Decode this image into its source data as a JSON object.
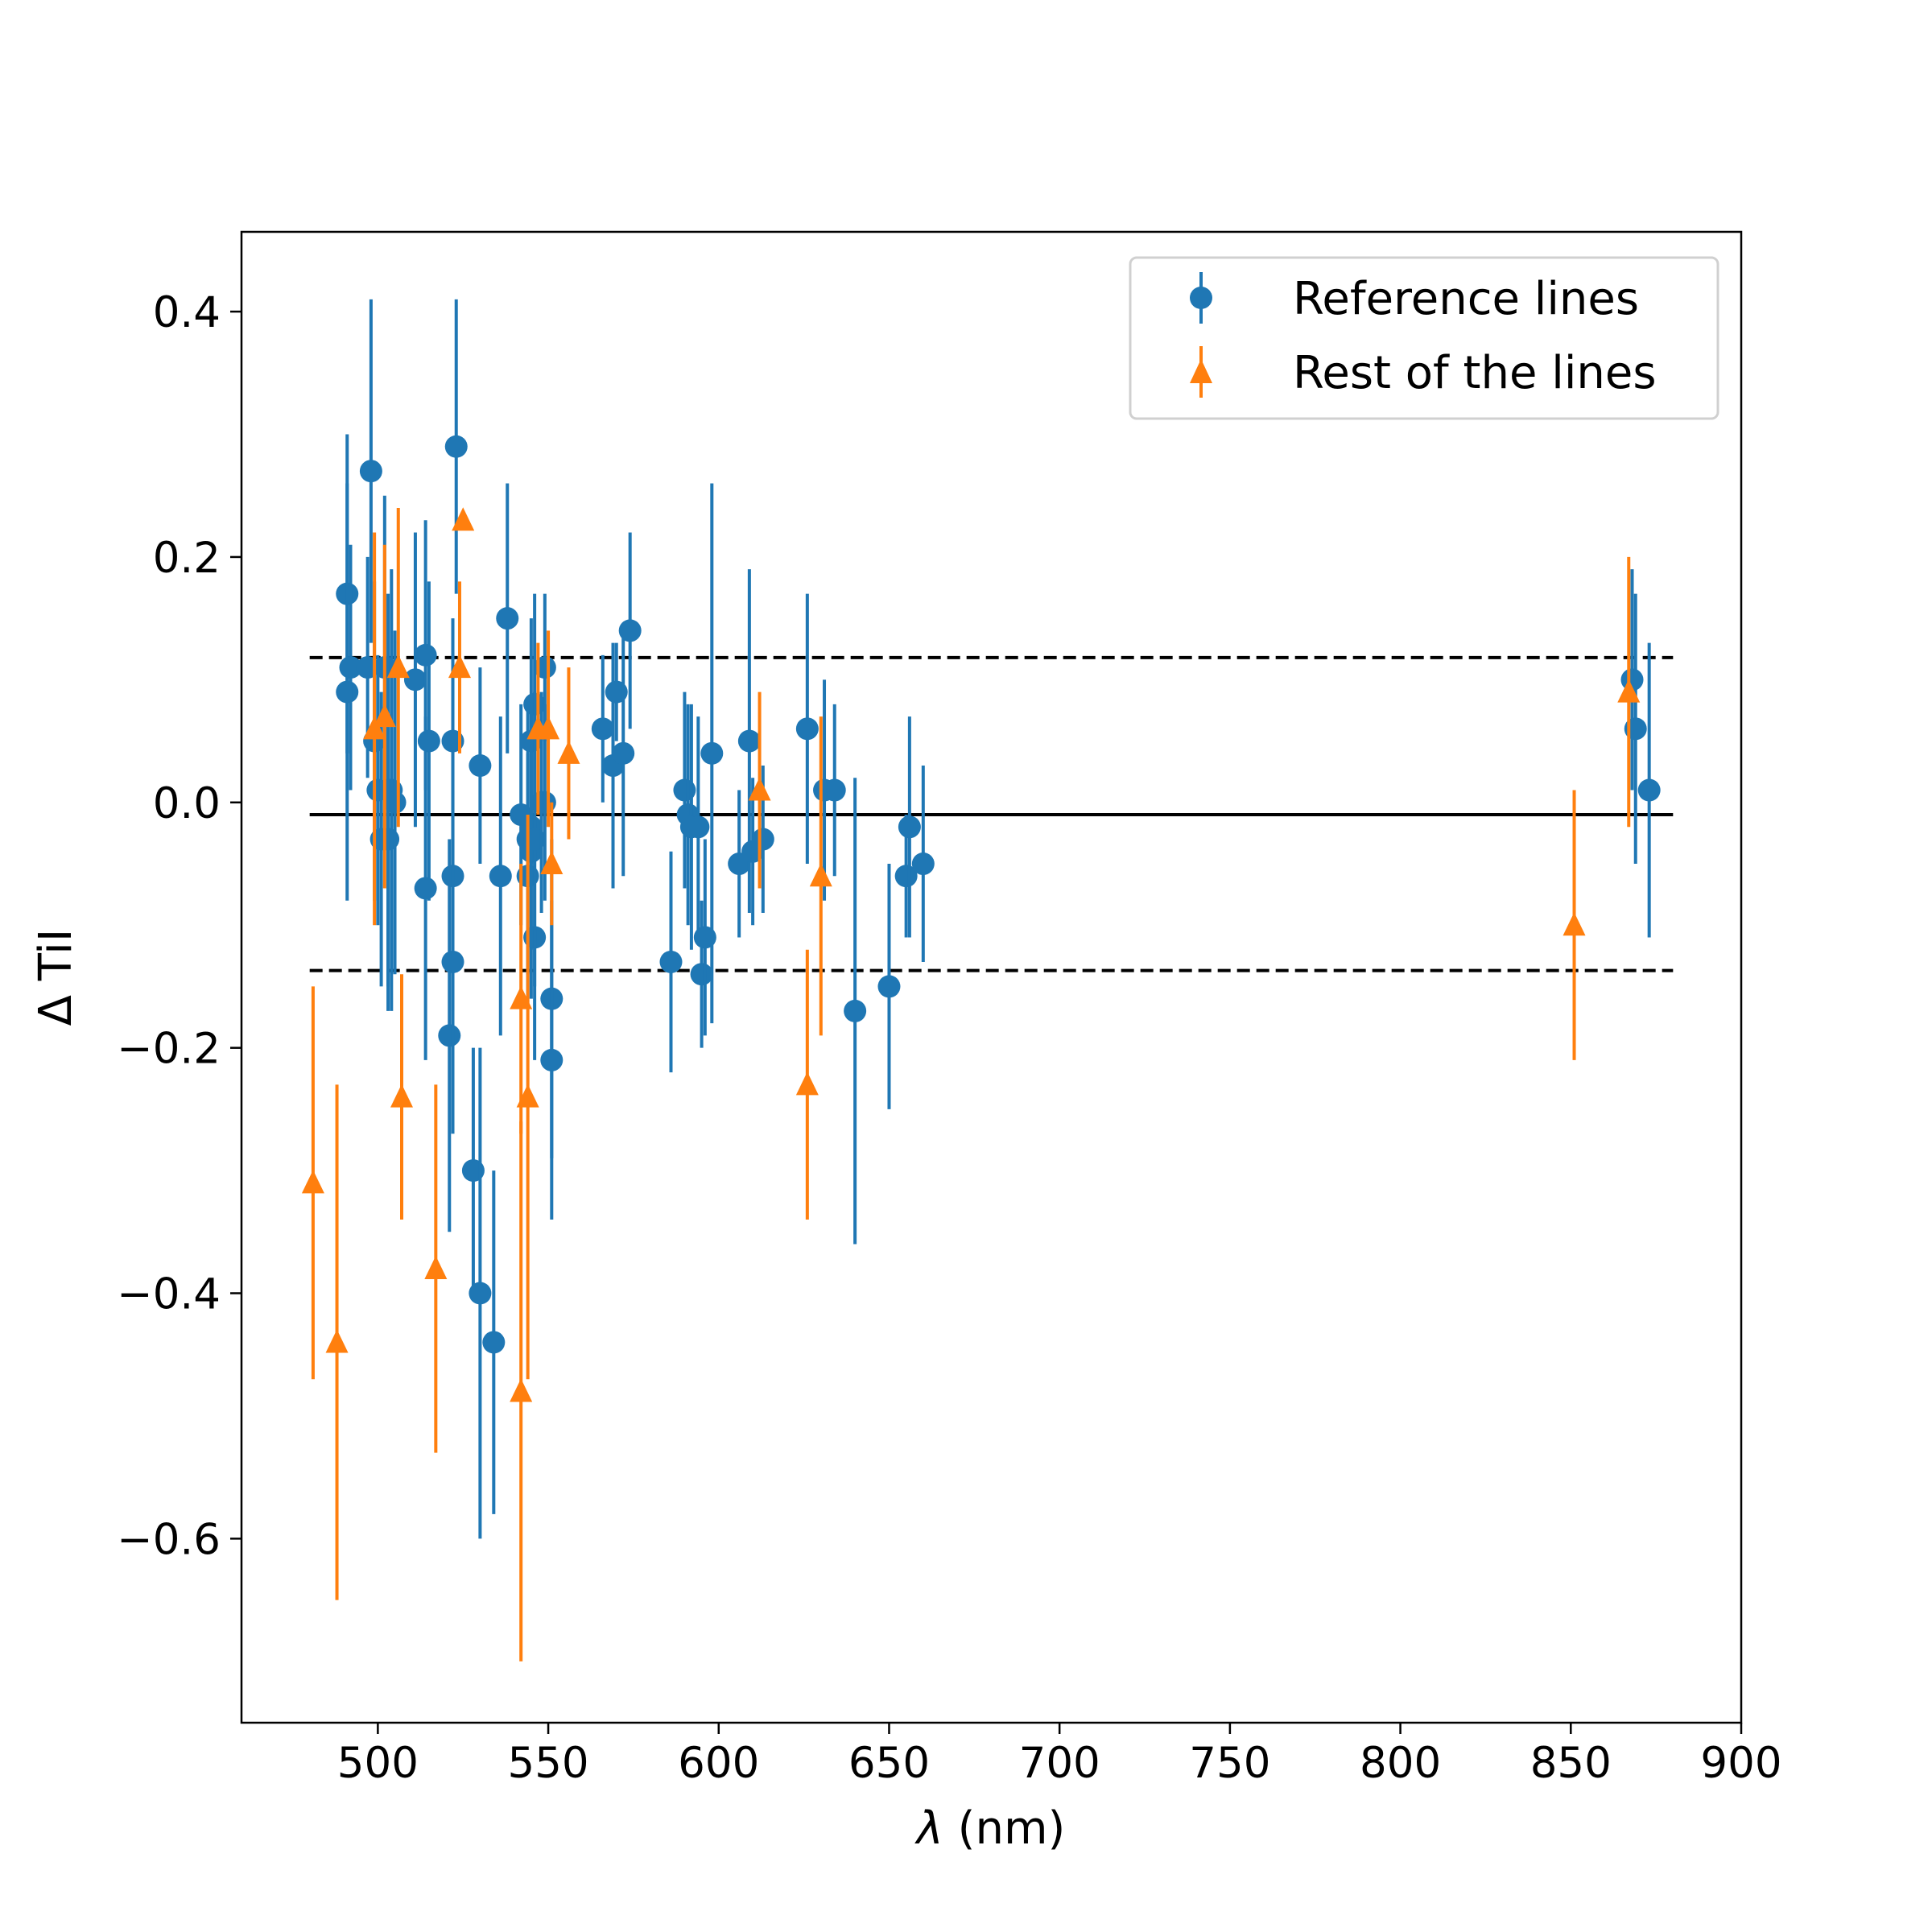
{
  "chart_data": {
    "type": "scatter",
    "title": "",
    "xlabel_symbol": "λ",
    "xlabel_rest": " (nm)",
    "ylabel": "Δ TiI",
    "xlim": [
      460,
      900
    ],
    "ylim": [
      -0.75,
      0.465
    ],
    "x_ticks": [
      {
        "value": 500,
        "label": "500"
      },
      {
        "value": 550,
        "label": "550"
      },
      {
        "value": 600,
        "label": "600"
      },
      {
        "value": 650,
        "label": "650"
      },
      {
        "value": 700,
        "label": "700"
      },
      {
        "value": 750,
        "label": "750"
      },
      {
        "value": 800,
        "label": "800"
      },
      {
        "value": 850,
        "label": "850"
      },
      {
        "value": 900,
        "label": "900"
      }
    ],
    "y_ticks": [
      {
        "value": 0.4,
        "label": "0.4"
      },
      {
        "value": 0.2,
        "label": "0.2"
      },
      {
        "value": 0.0,
        "label": "0.0"
      },
      {
        "value": -0.2,
        "label": "−0.2"
      },
      {
        "value": -0.4,
        "label": "−0.4"
      },
      {
        "value": -0.6,
        "label": "−0.6"
      }
    ],
    "grid": false,
    "legend_position": "top-right",
    "reference_lines": [
      {
        "y": -0.01,
        "style": "solid",
        "x_range": [
          480,
          880
        ]
      },
      {
        "y": 0.118,
        "style": "dashed",
        "x_range": [
          480,
          880
        ]
      },
      {
        "y": -0.137,
        "style": "dashed",
        "x_range": [
          480,
          880
        ]
      }
    ],
    "series": [
      {
        "name": "Reference lines",
        "marker": "circle",
        "color": "#1f77b4",
        "points": [
          {
            "x": 491,
            "y": 0.17,
            "err": 0.13
          },
          {
            "x": 491,
            "y": 0.09,
            "err": 0.17
          },
          {
            "x": 492,
            "y": 0.11,
            "err": 0.1
          },
          {
            "x": 497,
            "y": 0.11,
            "err": 0.09
          },
          {
            "x": 498,
            "y": 0.27,
            "err": 0.14
          },
          {
            "x": 499,
            "y": 0.05,
            "err": 0.13
          },
          {
            "x": 500,
            "y": 0.01,
            "err": 0.11
          },
          {
            "x": 501,
            "y": -0.03,
            "err": 0.12
          },
          {
            "x": 502,
            "y": 0.11,
            "err": 0.14
          },
          {
            "x": 503,
            "y": -0.03,
            "err": 0.14
          },
          {
            "x": 503,
            "y": 0.01,
            "err": 0.16
          },
          {
            "x": 504,
            "y": 0.01,
            "err": 0.18
          },
          {
            "x": 505,
            "y": 0.0,
            "err": 0.14
          },
          {
            "x": 511,
            "y": 0.1,
            "err": 0.12
          },
          {
            "x": 514,
            "y": -0.07,
            "err": 0.14
          },
          {
            "x": 514,
            "y": 0.12,
            "err": 0.11
          },
          {
            "x": 515,
            "y": 0.05,
            "err": 0.13
          },
          {
            "x": 521,
            "y": -0.19,
            "err": 0.16
          },
          {
            "x": 522,
            "y": -0.06,
            "err": 0.11
          },
          {
            "x": 522,
            "y": 0.05,
            "err": 0.1
          },
          {
            "x": 522,
            "y": -0.13,
            "err": 0.14
          },
          {
            "x": 523,
            "y": 0.29,
            "err": 0.12
          },
          {
            "x": 528,
            "y": -0.3,
            "err": 0.1
          },
          {
            "x": 530,
            "y": -0.4,
            "err": 0.2
          },
          {
            "x": 530,
            "y": 0.03,
            "err": 0.08
          },
          {
            "x": 534,
            "y": -0.44,
            "err": 0.14
          },
          {
            "x": 536,
            "y": -0.06,
            "err": 0.13
          },
          {
            "x": 538,
            "y": 0.15,
            "err": 0.11
          },
          {
            "x": 542,
            "y": -0.01,
            "err": 0.09
          },
          {
            "x": 544,
            "y": -0.03,
            "err": 0.11
          },
          {
            "x": 544,
            "y": -0.06,
            "err": 0.1
          },
          {
            "x": 545,
            "y": -0.02,
            "err": 0.1
          },
          {
            "x": 545,
            "y": -0.04,
            "err": 0.12
          },
          {
            "x": 545,
            "y": 0.05,
            "err": 0.1
          },
          {
            "x": 546,
            "y": -0.11,
            "err": 0.1
          },
          {
            "x": 546,
            "y": 0.08,
            "err": 0.09
          },
          {
            "x": 546,
            "y": -0.03,
            "err": 0.12
          },
          {
            "x": 548,
            "y": 0.0,
            "err": 0.09
          },
          {
            "x": 549,
            "y": 0.11,
            "err": 0.06
          },
          {
            "x": 549,
            "y": 0.0,
            "err": 0.08
          },
          {
            "x": 551,
            "y": -0.16,
            "err": 0.13
          },
          {
            "x": 551,
            "y": -0.21,
            "err": 0.13
          },
          {
            "x": 566,
            "y": 0.06,
            "err": 0.06
          },
          {
            "x": 569,
            "y": 0.03,
            "err": 0.1
          },
          {
            "x": 570,
            "y": 0.09,
            "err": 0.04
          },
          {
            "x": 572,
            "y": 0.04,
            "err": 0.1
          },
          {
            "x": 574,
            "y": 0.14,
            "err": 0.08
          },
          {
            "x": 586,
            "y": -0.13,
            "err": 0.09
          },
          {
            "x": 590,
            "y": 0.01,
            "err": 0.08
          },
          {
            "x": 591,
            "y": -0.01,
            "err": 0.09
          },
          {
            "x": 592,
            "y": -0.02,
            "err": 0.1
          },
          {
            "x": 594,
            "y": -0.02,
            "err": 0.09
          },
          {
            "x": 595,
            "y": -0.14,
            "err": 0.06
          },
          {
            "x": 596,
            "y": -0.11,
            "err": 0.08
          },
          {
            "x": 598,
            "y": 0.04,
            "err": 0.22
          },
          {
            "x": 606,
            "y": -0.05,
            "err": 0.06
          },
          {
            "x": 609,
            "y": 0.05,
            "err": 0.14
          },
          {
            "x": 610,
            "y": -0.04,
            "err": 0.06
          },
          {
            "x": 613,
            "y": -0.03,
            "err": 0.06
          },
          {
            "x": 626,
            "y": 0.06,
            "err": 0.11
          },
          {
            "x": 631,
            "y": 0.01,
            "err": 0.09
          },
          {
            "x": 634,
            "y": 0.01,
            "err": 0.07
          },
          {
            "x": 640,
            "y": -0.17,
            "err": 0.19
          },
          {
            "x": 650,
            "y": -0.15,
            "err": 0.1
          },
          {
            "x": 655,
            "y": -0.06,
            "err": 0.05
          },
          {
            "x": 656,
            "y": -0.02,
            "err": 0.09
          },
          {
            "x": 660,
            "y": -0.05,
            "err": 0.08
          },
          {
            "x": 868,
            "y": 0.1,
            "err": 0.09
          },
          {
            "x": 869,
            "y": 0.06,
            "err": 0.11
          },
          {
            "x": 873,
            "y": 0.01,
            "err": 0.12
          }
        ]
      },
      {
        "name": "Rest of the lines",
        "marker": "triangle",
        "color": "#ff7f0e",
        "points": [
          {
            "x": 481,
            "y": -0.31,
            "err": 0.16
          },
          {
            "x": 488,
            "y": -0.44,
            "err": 0.21
          },
          {
            "x": 499,
            "y": 0.06,
            "err": 0.16
          },
          {
            "x": 502,
            "y": 0.07,
            "err": 0.14
          },
          {
            "x": 506,
            "y": 0.11,
            "err": 0.13
          },
          {
            "x": 507,
            "y": -0.24,
            "err": 0.1
          },
          {
            "x": 517,
            "y": -0.38,
            "err": 0.15
          },
          {
            "x": 524,
            "y": 0.11,
            "err": 0.07
          },
          {
            "x": 525,
            "y": 0.23,
            "err": 0.0
          },
          {
            "x": 542,
            "y": -0.48,
            "err": 0.22
          },
          {
            "x": 542,
            "y": -0.16,
            "err": 0.11
          },
          {
            "x": 544,
            "y": -0.24,
            "err": 0.23
          },
          {
            "x": 547,
            "y": 0.06,
            "err": 0.07
          },
          {
            "x": 550,
            "y": 0.06,
            "err": 0.08
          },
          {
            "x": 551,
            "y": -0.05,
            "err": 0.05
          },
          {
            "x": 556,
            "y": 0.04,
            "err": 0.07
          },
          {
            "x": 612,
            "y": 0.01,
            "err": 0.08
          },
          {
            "x": 626,
            "y": -0.23,
            "err": 0.11
          },
          {
            "x": 630,
            "y": -0.06,
            "err": 0.13
          },
          {
            "x": 851,
            "y": -0.1,
            "err": 0.11
          },
          {
            "x": 867,
            "y": 0.09,
            "err": 0.11
          }
        ]
      }
    ]
  }
}
